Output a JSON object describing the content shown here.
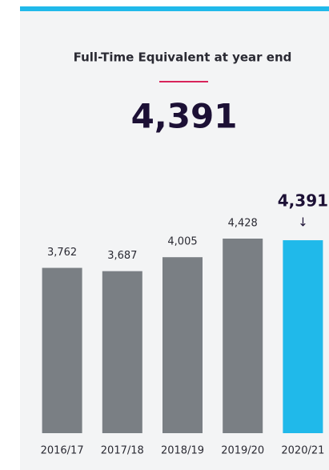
{
  "chart_data": {
    "type": "bar",
    "title": "Full-Time Equivalent at year end",
    "headline": "4,391",
    "categories": [
      "2016/17",
      "2017/18",
      "2018/19",
      "2019/20",
      "2020/21"
    ],
    "values": [
      3762,
      3687,
      4005,
      4428,
      4391
    ],
    "value_labels": [
      "3,762",
      "3,687",
      "4,005",
      "4,428",
      "4,391"
    ],
    "color": "#7a7f84",
    "highlight_color": "#20b9ea",
    "highlight_index": 4
  }
}
